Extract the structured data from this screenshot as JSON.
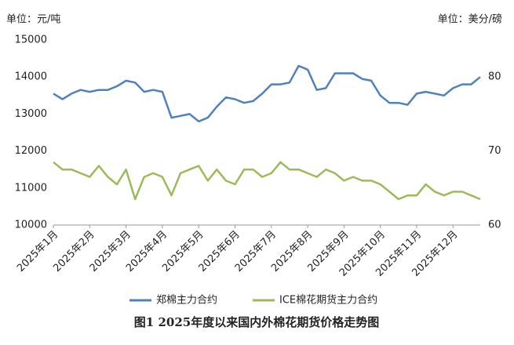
{
  "chart_data": {
    "type": "line",
    "title": "图1 2025年度以来国内外棉花期货价格走势图",
    "y_label": "单位：元/吨",
    "y2_label": "单位：美分/磅",
    "categories": [
      "2025年1月",
      null,
      null,
      null,
      "2025年2月",
      null,
      null,
      null,
      "2025年3月",
      null,
      null,
      null,
      "2025年4月",
      null,
      null,
      null,
      "2025年5月",
      null,
      null,
      null,
      "2025年6月",
      null,
      null,
      null,
      "2025年7月",
      null,
      null,
      null,
      "2025年8月",
      null,
      null,
      null,
      "2025年9月",
      null,
      null,
      null,
      "2025年10月",
      null,
      null,
      null,
      "2025年11月",
      null,
      null,
      null,
      "2025年12月",
      null,
      null,
      null
    ],
    "series": [
      {
        "name": "郑棉主力合约",
        "color": "#4f81bd",
        "values": [
          13550,
          13400,
          13550,
          13650,
          13600,
          13650,
          13650,
          13750,
          13900,
          13850,
          13600,
          13650,
          13600,
          12900,
          12950,
          13000,
          12800,
          12900,
          13200,
          13450,
          13400,
          13300,
          13350,
          13550,
          13800,
          13800,
          13850,
          14300,
          14200,
          13650,
          13700,
          14100,
          14100,
          14100,
          13950,
          13900,
          13500,
          13300,
          13300,
          13250,
          13550,
          13600,
          13550,
          13500,
          13700,
          13800,
          13800,
          14000
        ]
      },
      {
        "name": "ICE棉花期货主力合约",
        "color": "#9bbb59",
        "axis": "y2",
        "values": [
          68.5,
          67.5,
          67.5,
          67.0,
          66.5,
          68.0,
          66.5,
          65.5,
          67.5,
          63.5,
          66.5,
          67.0,
          66.5,
          64.0,
          67.0,
          67.5,
          68.0,
          66.0,
          67.5,
          66.0,
          65.5,
          67.5,
          67.5,
          66.5,
          67.0,
          68.5,
          67.5,
          67.5,
          67.0,
          66.5,
          67.5,
          67.0,
          66.0,
          66.5,
          66.0,
          66.0,
          65.5,
          64.5,
          63.5,
          64.0,
          64.0,
          65.5,
          64.5,
          64.0,
          64.5,
          64.5,
          64.0,
          63.5
        ]
      }
    ],
    "ylim": [
      10000,
      15000
    ],
    "yticks": [
      10000,
      11000,
      12000,
      13000,
      14000,
      15000
    ],
    "y2lim": [
      60,
      85
    ],
    "y2ticks": [
      60,
      70,
      80
    ],
    "grid": false
  }
}
